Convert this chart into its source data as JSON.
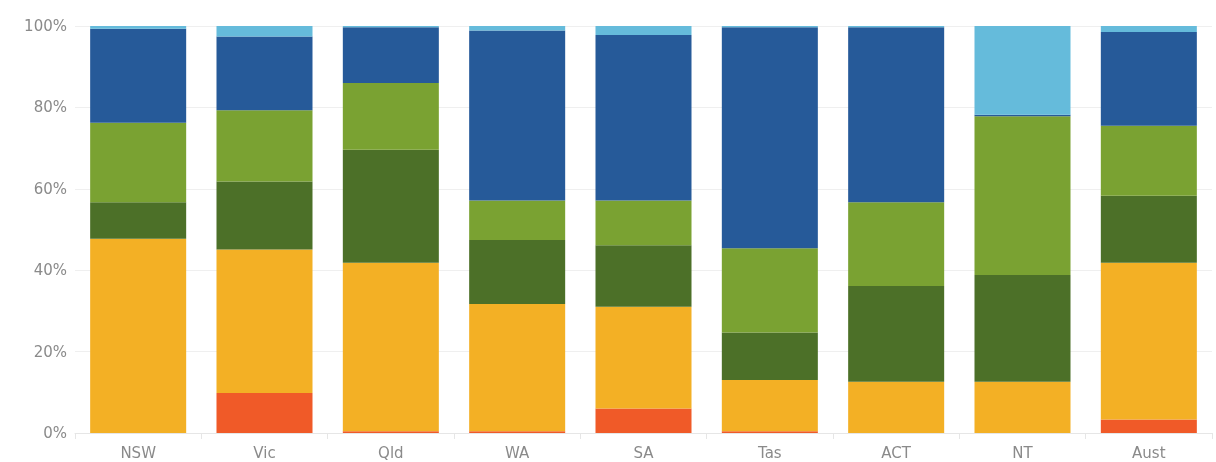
{
  "chart_data": {
    "type": "bar",
    "stacked": true,
    "categories": [
      "NSW",
      "Vic",
      "Qld",
      "WA",
      "SA",
      "Tas",
      "ACT",
      "NT",
      "Aust"
    ],
    "series": [
      {
        "color": "#f05a28",
        "values": [
          0,
          9.8,
          0.4,
          0.4,
          6.0,
          0.4,
          0,
          0,
          3.3
        ]
      },
      {
        "color": "#f3b025",
        "values": [
          47.7,
          35.3,
          41.4,
          31.3,
          25.0,
          12.6,
          12.6,
          12.6,
          38.5
        ]
      },
      {
        "color": "#4c7028",
        "values": [
          9.0,
          16.7,
          27.8,
          15.7,
          15.1,
          11.7,
          23.5,
          26.2,
          16.5
        ]
      },
      {
        "color": "#7aa232",
        "values": [
          19.5,
          17.5,
          16.4,
          9.7,
          11.0,
          20.7,
          20.6,
          39.0,
          17.2
        ]
      },
      {
        "color": "#265a99",
        "values": [
          23.1,
          18.1,
          13.7,
          41.8,
          40.7,
          54.3,
          43.0,
          0.4,
          23.0
        ]
      },
      {
        "color": "#65bbdb",
        "values": [
          0.7,
          2.6,
          0.3,
          1.1,
          2.2,
          0.3,
          0.3,
          21.8,
          1.5
        ]
      }
    ],
    "ylim": [
      0,
      100
    ],
    "yticks": [
      {
        "value": 0,
        "label": "0%"
      },
      {
        "value": 20,
        "label": "20%"
      },
      {
        "value": 40,
        "label": "40%"
      },
      {
        "value": 60,
        "label": "60%"
      },
      {
        "value": 80,
        "label": "80%"
      },
      {
        "value": 100,
        "label": "100%"
      }
    ],
    "grid": "y"
  }
}
